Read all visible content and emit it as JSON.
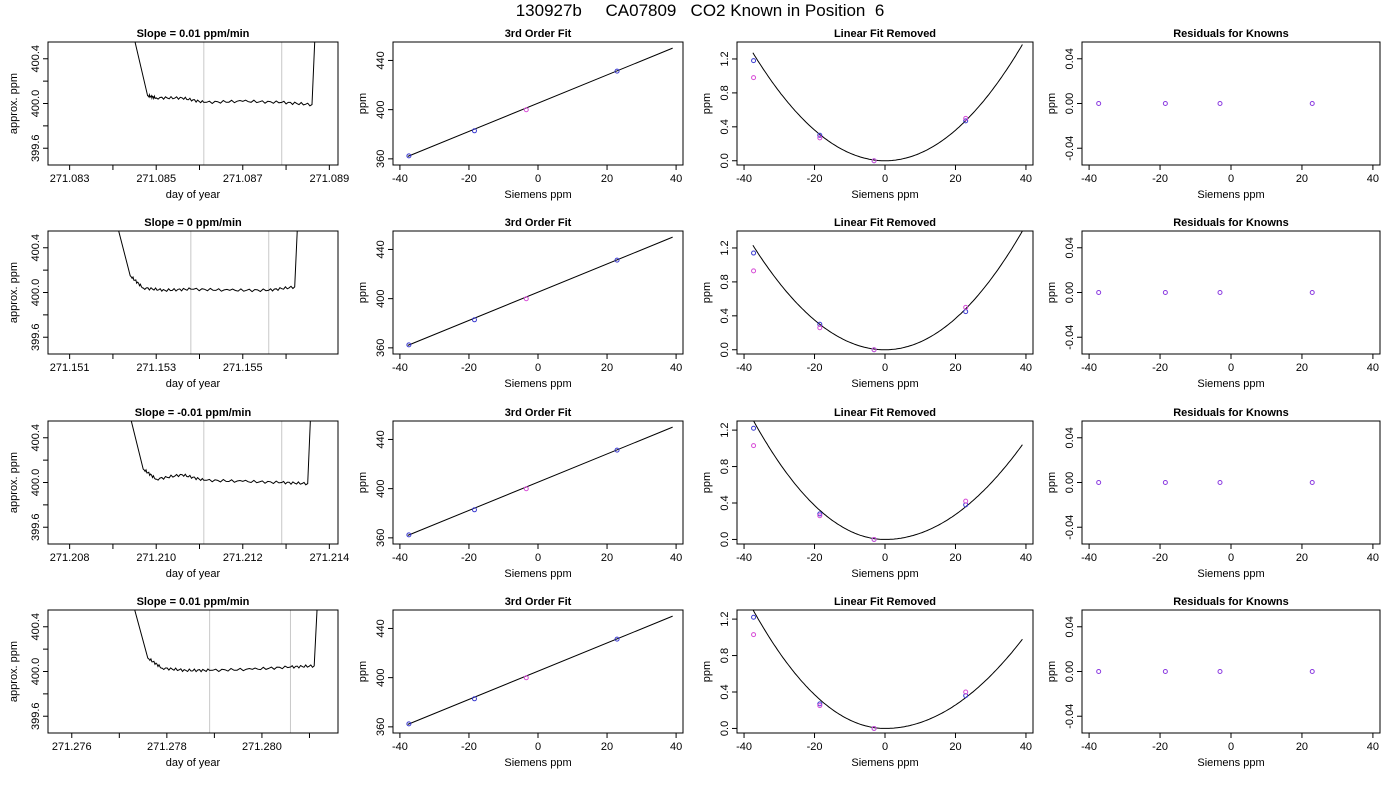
{
  "page": {
    "title": "130927b     CA07809   CO2 Known in Position  6"
  },
  "colors": {
    "ink": "#000000",
    "grid_vline": "#c8c8c8",
    "point_a": "#d64ad6",
    "point_b": "#3a3ad0",
    "point_c": "#2aa8e0",
    "point_d": "#8a3ae0"
  },
  "chart_data": [
    {
      "row": 1,
      "panels": [
        {
          "type": "line",
          "title": "Slope =  0.01  ppm/min",
          "xlabel": "day of year",
          "ylabel": "approx. ppm",
          "xlim": [
            271.0825,
            271.0892
          ],
          "ylim": [
            399.45,
            400.55
          ],
          "xticks": [
            "271.083",
            "271.084",
            "271.085",
            "271.086",
            "271.087",
            "271.088",
            "271.089"
          ],
          "xtick_labels": [
            "271.083",
            "",
            "271.085",
            "",
            "271.087",
            "",
            "271.089"
          ],
          "yticks": [
            "399.6",
            "399.8",
            "400.0",
            "400.2",
            "400.4"
          ],
          "ytick_labels": [
            "399.6",
            "",
            "400.0",
            "",
            "400.4"
          ],
          "vlines": [
            271.0861,
            271.0879
          ],
          "series": [
            {
              "x": [
                271.0843,
                271.0848,
                271.085,
                271.0856,
                271.0861,
                271.087,
                271.0879,
                271.0886,
                271.0887
              ],
              "y": [
                400.9,
                400.07,
                400.05,
                400.05,
                400.01,
                400.02,
                400.01,
                399.99,
                400.9
              ]
            }
          ]
        },
        {
          "type": "scatter",
          "title": "3rd Order Fit",
          "xlabel": "Siemens ppm",
          "ylabel": "ppm",
          "xlim": [
            -42,
            42
          ],
          "ylim": [
            355,
            455
          ],
          "xticks": [
            "-40",
            "-20",
            "0",
            "20",
            "40"
          ],
          "yticks": [
            "360",
            "400",
            "440"
          ],
          "fit_line": {
            "x": [
              -37.7,
              39
            ],
            "y": [
              362,
              450
            ]
          },
          "series": [
            {
              "x": [
                -37.4,
                -18.4,
                -3.4,
                22.9
              ],
              "y": [
                362.4,
                382.8,
                399.9,
                431.3
              ]
            }
          ]
        },
        {
          "type": "scatter",
          "title": "Linear Fit Removed",
          "xlabel": "Siemens ppm",
          "ylabel": "ppm",
          "xlim": [
            -42,
            42
          ],
          "ylim": [
            -0.05,
            1.4
          ],
          "xticks": [
            "-40",
            "-20",
            "0",
            "20",
            "40"
          ],
          "yticks": [
            "0.0",
            "0.4",
            "0.8",
            "1.2"
          ],
          "curve": {
            "vertex_x": 0,
            "vertex_y": 0,
            "y_at_minus37": 1.24,
            "y_at_39": 1.37
          },
          "series": [
            {
              "x": [
                -37.3,
                -18.5,
                -3.1,
                22.9
              ],
              "y": [
                1.18,
                0.3,
                0.0,
                0.47
              ]
            },
            {
              "x": [
                -37.3,
                -18.5,
                -3.1,
                22.9
              ],
              "y": [
                0.98,
                0.27,
                0.0,
                0.5
              ]
            }
          ]
        },
        {
          "type": "scatter",
          "title": "Residuals for Knowns",
          "xlabel": "Siemens ppm",
          "ylabel": "ppm",
          "xlim": [
            -42,
            42
          ],
          "ylim": [
            -0.055,
            0.055
          ],
          "xticks": [
            "-40",
            "-20",
            "0",
            "20",
            "40"
          ],
          "yticks": [
            "-0.04",
            "0.00",
            "0.04"
          ],
          "series": [
            {
              "x": [
                -37.3,
                -18.5,
                -3.1,
                22.9
              ],
              "y": [
                0,
                0,
                0,
                0
              ]
            }
          ]
        }
      ]
    },
    {
      "row": 2,
      "panels": [
        {
          "type": "line",
          "title": "Slope =  0  ppm/min",
          "xlabel": "day of year",
          "ylabel": "approx. ppm",
          "xlim": [
            271.1505,
            271.1572
          ],
          "ylim": [
            399.45,
            400.55
          ],
          "xticks": [
            "271.151",
            "271.152",
            "271.153",
            "271.154",
            "271.155",
            "271.156"
          ],
          "xtick_labels": [
            "271.151",
            "",
            "271.153",
            "",
            "271.155",
            ""
          ],
          "yticks": [
            "399.6",
            "399.8",
            "400.0",
            "400.2",
            "400.4"
          ],
          "ytick_labels": [
            "399.6",
            "",
            "400.0",
            "",
            "400.4"
          ],
          "vlines": [
            271.1538,
            271.1556
          ],
          "series": [
            {
              "x": [
                271.1519,
                271.1524,
                271.1527,
                271.1532,
                271.1538,
                271.1547,
                271.1556,
                271.1562,
                271.1563
              ],
              "y": [
                400.9,
                400.15,
                400.04,
                400.02,
                400.03,
                400.02,
                400.02,
                400.05,
                400.9
              ]
            }
          ]
        },
        {
          "type": "scatter",
          "title": "3rd Order Fit",
          "xlabel": "Siemens ppm",
          "ylabel": "ppm",
          "xlim": [
            -42,
            42
          ],
          "ylim": [
            355,
            455
          ],
          "xticks": [
            "-40",
            "-20",
            "0",
            "20",
            "40"
          ],
          "yticks": [
            "360",
            "400",
            "440"
          ],
          "fit_line": {
            "x": [
              -37.7,
              39
            ],
            "y": [
              362,
              450
            ]
          },
          "series": [
            {
              "x": [
                -37.4,
                -18.4,
                -3.4,
                22.9
              ],
              "y": [
                362.4,
                382.8,
                399.9,
                431.3
              ]
            }
          ]
        },
        {
          "type": "scatter",
          "title": "Linear Fit Removed",
          "xlabel": "Siemens ppm",
          "ylabel": "ppm",
          "xlim": [
            -42,
            42
          ],
          "ylim": [
            -0.05,
            1.4
          ],
          "xticks": [
            "-40",
            "-20",
            "0",
            "20",
            "40"
          ],
          "yticks": [
            "0.0",
            "0.4",
            "0.8",
            "1.2"
          ],
          "curve": {
            "vertex_x": 0,
            "vertex_y": 0,
            "y_at_minus37": 1.2,
            "y_at_39": 1.4
          },
          "series": [
            {
              "x": [
                -37.3,
                -18.5,
                -3.1,
                22.9
              ],
              "y": [
                1.14,
                0.3,
                0.0,
                0.45
              ]
            },
            {
              "x": [
                -37.3,
                -18.5,
                -3.1,
                22.9
              ],
              "y": [
                0.93,
                0.26,
                0.0,
                0.5
              ]
            }
          ]
        },
        {
          "type": "scatter",
          "title": "Residuals for Knowns",
          "xlabel": "Siemens ppm",
          "ylabel": "ppm",
          "xlim": [
            -42,
            42
          ],
          "ylim": [
            -0.055,
            0.055
          ],
          "xticks": [
            "-40",
            "-20",
            "0",
            "20",
            "40"
          ],
          "yticks": [
            "-0.04",
            "0.00",
            "0.04"
          ],
          "series": [
            {
              "x": [
                -37.3,
                -18.5,
                -3.1,
                22.9
              ],
              "y": [
                0,
                0,
                0,
                0
              ]
            }
          ]
        }
      ]
    },
    {
      "row": 3,
      "panels": [
        {
          "type": "line",
          "title": "Slope =  -0.01  ppm/min",
          "xlabel": "day of year",
          "ylabel": "approx. ppm",
          "xlim": [
            271.2075,
            271.2142
          ],
          "ylim": [
            399.45,
            400.55
          ],
          "xticks": [
            "271.208",
            "271.209",
            "271.210",
            "271.211",
            "271.212",
            "271.213",
            "271.214"
          ],
          "xtick_labels": [
            "271.208",
            "",
            "271.210",
            "",
            "271.212",
            "",
            "271.214"
          ],
          "yticks": [
            "399.6",
            "399.8",
            "400.0",
            "400.2",
            "400.4"
          ],
          "ytick_labels": [
            "399.6",
            "",
            "400.0",
            "",
            "400.4"
          ],
          "vlines": [
            271.2111,
            271.2129
          ],
          "series": [
            {
              "x": [
                271.2092,
                271.2097,
                271.21,
                271.2106,
                271.2111,
                271.212,
                271.2129,
                271.2135,
                271.2136
              ],
              "y": [
                400.9,
                400.12,
                400.03,
                400.07,
                400.02,
                400.01,
                400.0,
                399.99,
                400.9
              ]
            }
          ]
        },
        {
          "type": "scatter",
          "title": "3rd Order Fit",
          "xlabel": "Siemens ppm",
          "ylabel": "ppm",
          "xlim": [
            -42,
            42
          ],
          "ylim": [
            355,
            455
          ],
          "xticks": [
            "-40",
            "-20",
            "0",
            "20",
            "40"
          ],
          "yticks": [
            "360",
            "400",
            "440"
          ],
          "fit_line": {
            "x": [
              -37.7,
              39
            ],
            "y": [
              362,
              450
            ]
          },
          "series": [
            {
              "x": [
                -37.4,
                -18.4,
                -3.4,
                22.9
              ],
              "y": [
                362.4,
                382.8,
                399.9,
                431.3
              ]
            }
          ]
        },
        {
          "type": "scatter",
          "title": "Linear Fit Removed",
          "xlabel": "Siemens ppm",
          "ylabel": "ppm",
          "xlim": [
            -42,
            42
          ],
          "ylim": [
            -0.05,
            1.3
          ],
          "xticks": [
            "-40",
            "-20",
            "0",
            "20",
            "40"
          ],
          "yticks": [
            "0.0",
            "0.4",
            "0.8",
            "1.2"
          ],
          "curve": {
            "vertex_x": 0,
            "vertex_y": 0,
            "y_at_minus37": 1.28,
            "y_at_39": 1.04
          },
          "series": [
            {
              "x": [
                -37.3,
                -18.5,
                -3.1,
                22.9
              ],
              "y": [
                1.22,
                0.28,
                0.0,
                0.38
              ]
            },
            {
              "x": [
                -37.3,
                -18.5,
                -3.1,
                22.9
              ],
              "y": [
                1.03,
                0.26,
                0.0,
                0.42
              ]
            }
          ]
        },
        {
          "type": "scatter",
          "title": "Residuals for Knowns",
          "xlabel": "Siemens ppm",
          "ylabel": "ppm",
          "xlim": [
            -42,
            42
          ],
          "ylim": [
            -0.055,
            0.055
          ],
          "xticks": [
            "-40",
            "-20",
            "0",
            "20",
            "40"
          ],
          "yticks": [
            "-0.04",
            "0.00",
            "0.04"
          ],
          "series": [
            {
              "x": [
                -37.3,
                -18.5,
                -3.1,
                22.9
              ],
              "y": [
                0,
                0,
                0,
                0
              ]
            }
          ]
        }
      ]
    },
    {
      "row": 4,
      "panels": [
        {
          "type": "line",
          "title": "Slope =  0.01  ppm/min",
          "xlabel": "day of year",
          "ylabel": "approx. ppm",
          "xlim": [
            271.2755,
            271.2816
          ],
          "ylim": [
            399.45,
            400.55
          ],
          "xticks": [
            "271.276",
            "271.277",
            "271.278",
            "271.279",
            "271.280",
            "271.281"
          ],
          "xtick_labels": [
            "271.276",
            "",
            "271.278",
            "",
            "271.280",
            ""
          ],
          "yticks": [
            "399.6",
            "399.8",
            "400.0",
            "400.2",
            "400.4"
          ],
          "ytick_labels": [
            "399.6",
            "",
            "400.0",
            "",
            "400.4"
          ],
          "vlines": [
            271.2789,
            271.2806
          ],
          "series": [
            {
              "x": [
                271.2771,
                271.2776,
                271.2779,
                271.2784,
                271.2789,
                271.2798,
                271.2806,
                271.2811,
                271.2812
              ],
              "y": [
                400.9,
                400.12,
                400.03,
                400.01,
                400.01,
                400.02,
                400.04,
                400.05,
                400.9
              ]
            }
          ]
        },
        {
          "type": "scatter",
          "title": "3rd Order Fit",
          "xlabel": "Siemens ppm",
          "ylabel": "ppm",
          "xlim": [
            -42,
            42
          ],
          "ylim": [
            355,
            455
          ],
          "xticks": [
            "-40",
            "-20",
            "0",
            "20",
            "40"
          ],
          "yticks": [
            "360",
            "400",
            "440"
          ],
          "fit_line": {
            "x": [
              -37.7,
              39
            ],
            "y": [
              362,
              450
            ]
          },
          "series": [
            {
              "x": [
                -37.4,
                -18.4,
                -3.4,
                22.9
              ],
              "y": [
                362.4,
                382.8,
                399.9,
                431.3
              ]
            }
          ]
        },
        {
          "type": "scatter",
          "title": "Linear Fit Removed",
          "xlabel": "Siemens ppm",
          "ylabel": "ppm",
          "xlim": [
            -42,
            42
          ],
          "ylim": [
            -0.05,
            1.3
          ],
          "xticks": [
            "-40",
            "-20",
            "0",
            "20",
            "40"
          ],
          "yticks": [
            "0.0",
            "0.4",
            "0.8",
            "1.2"
          ],
          "curve": {
            "vertex_x": 0,
            "vertex_y": 0,
            "y_at_minus37": 1.27,
            "y_at_39": 0.98
          },
          "series": [
            {
              "x": [
                -37.3,
                -18.5,
                -3.1,
                22.9
              ],
              "y": [
                1.22,
                0.27,
                0.0,
                0.36
              ]
            },
            {
              "x": [
                -37.3,
                -18.5,
                -3.1,
                22.9
              ],
              "y": [
                1.03,
                0.25,
                0.0,
                0.4
              ]
            }
          ]
        },
        {
          "type": "scatter",
          "title": "Residuals for Knowns",
          "xlabel": "Siemens ppm",
          "ylabel": "ppm",
          "xlim": [
            -42,
            42
          ],
          "ylim": [
            -0.055,
            0.055
          ],
          "xticks": [
            "-40",
            "-20",
            "0",
            "20",
            "40"
          ],
          "yticks": [
            "-0.04",
            "0.00",
            "0.04"
          ],
          "series": [
            {
              "x": [
                -37.3,
                -18.5,
                -3.1,
                22.9
              ],
              "y": [
                0,
                0,
                0,
                0
              ]
            }
          ]
        }
      ]
    }
  ]
}
